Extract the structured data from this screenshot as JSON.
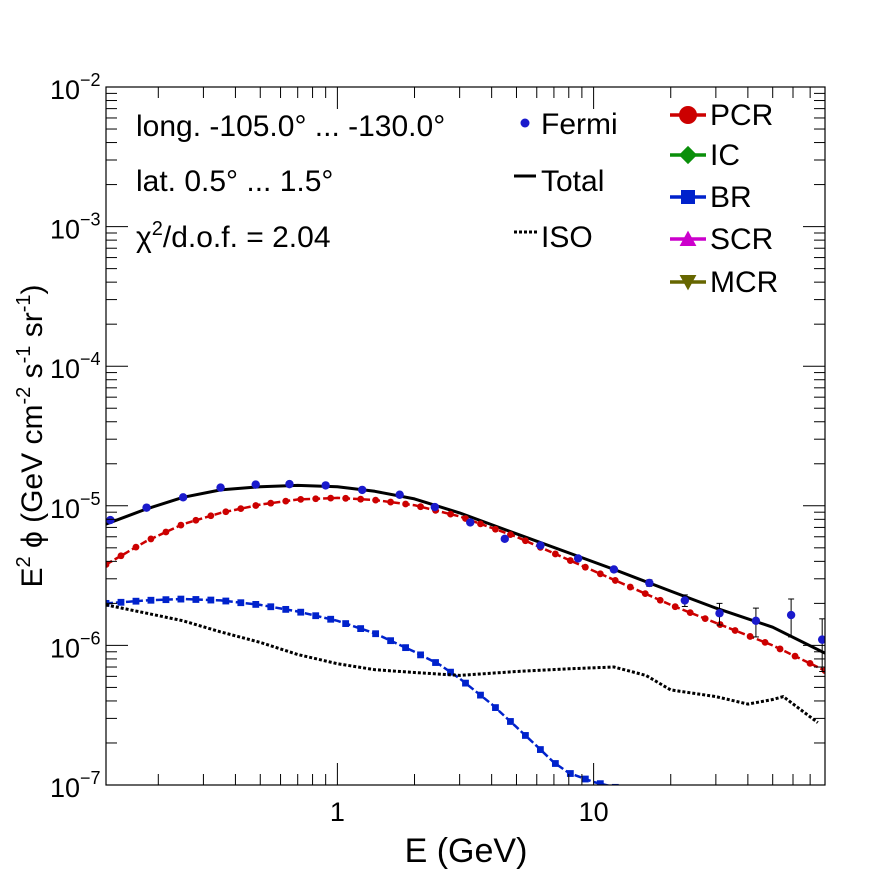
{
  "chart_data": {
    "type": "line",
    "xscale": "log",
    "yscale": "log",
    "xlim": [
      0.125,
      80
    ],
    "ylim": [
      1e-07,
      0.01
    ],
    "xlabel": "E (GeV)",
    "ylabel": "E2 φ (GeV cm-2 s-1 sr-1)",
    "x_ticks": [
      {
        "value": 1,
        "label": "1"
      },
      {
        "value": 10,
        "label": "10"
      }
    ],
    "y_ticks": [
      {
        "value": 1e-07,
        "base": "10",
        "exp": "−7"
      },
      {
        "value": 1e-06,
        "base": "10",
        "exp": "−6"
      },
      {
        "value": 1e-05,
        "base": "10",
        "exp": "−5"
      },
      {
        "value": 0.0001,
        "base": "10",
        "exp": "−4"
      },
      {
        "value": 0.001,
        "base": "10",
        "exp": "−3"
      },
      {
        "value": 0.01,
        "base": "10",
        "exp": "−2"
      }
    ],
    "info": {
      "longitude": "long. -105.0° ... -130.0°",
      "latitude": "lat. 0.5° ... 1.5°",
      "chi2_symbol": "χ",
      "chi2_sup": "2",
      "chi2_rest": "/d.o.f. = 2.04"
    },
    "legend_left": [
      {
        "label": "Fermi",
        "color": "#1a1acc",
        "marker": "circle"
      },
      {
        "label": "Total",
        "color": "#000000",
        "marker": "line"
      },
      {
        "label": "ISO",
        "color": "#000000",
        "marker": "dotted"
      }
    ],
    "legend_right": [
      {
        "label": "PCR",
        "color": "#cc0000",
        "marker": "circle"
      },
      {
        "label": "IC",
        "color": "#0a8f0a",
        "marker": "cross"
      },
      {
        "label": "BR",
        "color": "#0022cc",
        "marker": "square"
      },
      {
        "label": "SCR",
        "color": "#cc00cc",
        "marker": "triangle-up"
      },
      {
        "label": "MCR",
        "color": "#666600",
        "marker": "triangle-down"
      }
    ],
    "series": [
      {
        "name": "Total",
        "style": "solid",
        "color": "#000000",
        "x": [
          0.125,
          0.18,
          0.25,
          0.35,
          0.5,
          0.7,
          1.0,
          1.4,
          2.0,
          3.0,
          5.0,
          8.0,
          12.0,
          20.0,
          30.0,
          50.0,
          80.0
        ],
        "y": [
          7.4e-06,
          9.5e-06,
          1.15e-05,
          1.3e-05,
          1.37e-05,
          1.4e-05,
          1.37e-05,
          1.27e-05,
          1.12e-05,
          8.9e-06,
          6.3e-06,
          4.6e-06,
          3.5e-06,
          2.45e-06,
          1.85e-06,
          1.35e-06,
          8.8e-07
        ]
      },
      {
        "name": "PCR",
        "style": "dashed-markers",
        "color": "#cc0000",
        "x": [
          0.125,
          0.18,
          0.25,
          0.35,
          0.5,
          0.7,
          1.0,
          1.4,
          2.0,
          3.0,
          5.0,
          8.0,
          12.0,
          20.0,
          30.0,
          50.0,
          80.0
        ],
        "y": [
          3.8e-06,
          5.6e-06,
          7.4e-06,
          8.9e-06,
          1.02e-05,
          1.11e-05,
          1.14e-05,
          1.1e-05,
          1.01e-05,
          8.4e-06,
          6e-06,
          4.1e-06,
          2.95e-06,
          1.95e-06,
          1.45e-06,
          1e-06,
          6.6e-07
        ]
      },
      {
        "name": "BR",
        "style": "dashed-markers",
        "color": "#0022cc",
        "x": [
          0.125,
          0.18,
          0.25,
          0.35,
          0.5,
          0.7,
          1.0,
          1.4,
          2.0,
          2.5,
          3.0,
          4.0,
          5.0,
          6.0,
          7.0,
          8.0,
          10.0,
          12.5
        ],
        "y": [
          2e-06,
          2.1e-06,
          2.15e-06,
          2.1e-06,
          1.95e-06,
          1.75e-06,
          1.5e-06,
          1.22e-06,
          9e-07,
          7.3e-07,
          5.8e-07,
          3.8e-07,
          2.6e-07,
          1.9e-07,
          1.45e-07,
          1.22e-07,
          1.05e-07,
          9.5e-08
        ]
      },
      {
        "name": "ISO",
        "style": "dotted",
        "color": "#000000",
        "x": [
          0.125,
          0.18,
          0.25,
          0.35,
          0.5,
          0.7,
          1.0,
          1.4,
          2.0,
          3.0,
          5.0,
          8.0,
          12.0,
          16.0,
          20.0,
          30.0,
          40.0,
          50.0,
          55.0,
          75.0
        ],
        "y": [
          1.95e-06,
          1.7e-06,
          1.5e-06,
          1.25e-06,
          1.05e-06,
          8.6e-07,
          7.4e-07,
          6.7e-07,
          6.4e-07,
          6.1e-07,
          6.5e-07,
          6.8e-07,
          7e-07,
          6.1e-07,
          4.8e-07,
          4.3e-07,
          3.8e-07,
          4.1e-07,
          4.3e-07,
          2.8e-07
        ]
      },
      {
        "name": "Fermi",
        "style": "points",
        "color": "#1a1acc",
        "x": [
          0.13,
          0.18,
          0.25,
          0.35,
          0.48,
          0.65,
          0.9,
          1.25,
          1.75,
          2.4,
          3.3,
          4.5,
          6.2,
          8.7,
          12.0,
          16.5,
          22.7,
          31.0,
          43.0,
          59.0,
          78.0
        ],
        "y": [
          7.9e-06,
          9.7e-06,
          1.15e-05,
          1.35e-05,
          1.42e-05,
          1.43e-05,
          1.4e-05,
          1.3e-05,
          1.2e-05,
          9.8e-06,
          7.6e-06,
          5.8e-06,
          5.2e-06,
          4.2e-06,
          3.5e-06,
          2.8e-06,
          2.1e-06,
          1.7e-06,
          1.5e-06,
          1.65e-06,
          1.1e-06
        ],
        "err": [
          0,
          0,
          0,
          0,
          0,
          0,
          0,
          0,
          0,
          0,
          0,
          0,
          0,
          0,
          1.5e-07,
          1.5e-07,
          2e-07,
          3e-07,
          3.5e-07,
          5e-07,
          4.5e-07
        ]
      }
    ]
  }
}
